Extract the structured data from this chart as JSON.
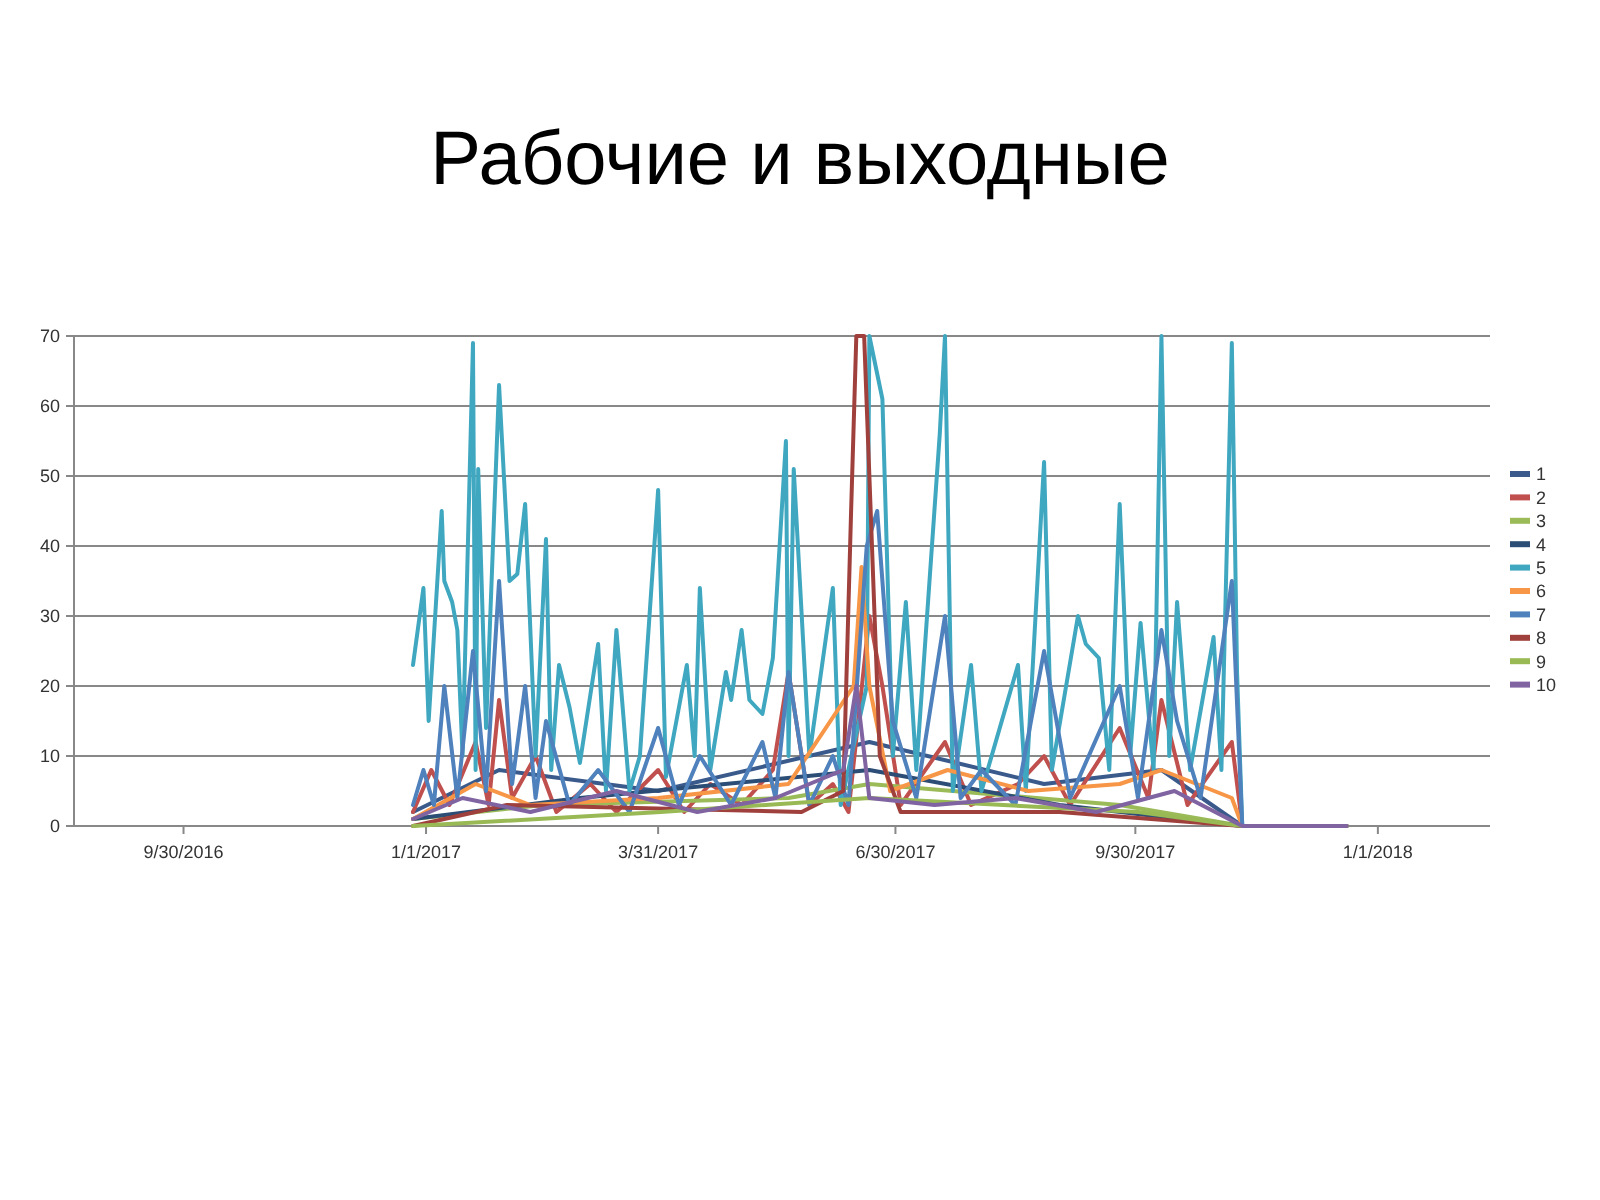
{
  "chart_data": {
    "type": "line",
    "title": "Рабочие и выходные",
    "xlim": [
      "2016-08-19",
      "2018-02-13"
    ],
    "ylim": [
      0,
      70
    ],
    "yticks": [
      0,
      10,
      20,
      30,
      40,
      50,
      60,
      70
    ],
    "xticks": [
      {
        "value": "2016-09-30",
        "label": "9/30/2016"
      },
      {
        "value": "2017-01-01",
        "label": "1/1/2017"
      },
      {
        "value": "2017-03-31",
        "label": "3/31/2017"
      },
      {
        "value": "2017-06-30",
        "label": "6/30/2017"
      },
      {
        "value": "2017-09-30",
        "label": "9/30/2017"
      },
      {
        "value": "2018-01-01",
        "label": "1/1/2018"
      }
    ],
    "grid": "y",
    "legend": "right",
    "line_style": "solid",
    "series": [
      {
        "name": "1",
        "color": "#3a5a8c",
        "x": [
          "2016-12-27",
          "2017-01-29",
          "2017-03-31",
          "2017-06-20",
          "2017-08-26",
          "2017-10-10",
          "2017-11-10",
          "2017-12-20"
        ],
        "values": [
          2,
          8,
          5,
          12,
          6,
          8,
          0,
          0
        ]
      },
      {
        "name": "2",
        "color": "#c0504d",
        "x": [
          "2016-12-27",
          "2017-01-03",
          "2017-01-10",
          "2017-01-20",
          "2017-01-25",
          "2017-01-29",
          "2017-02-03",
          "2017-02-12",
          "2017-02-20",
          "2017-03-05",
          "2017-03-15",
          "2017-03-31",
          "2017-04-10",
          "2017-04-20",
          "2017-05-02",
          "2017-05-14",
          "2017-05-20",
          "2017-05-28",
          "2017-06-06",
          "2017-06-12",
          "2017-06-20",
          "2017-06-25",
          "2017-07-02",
          "2017-07-19",
          "2017-07-29",
          "2017-08-16",
          "2017-08-26",
          "2017-09-05",
          "2017-09-24",
          "2017-10-05",
          "2017-10-10",
          "2017-10-20",
          "2017-11-06",
          "2017-11-10",
          "2017-12-20"
        ],
        "values": [
          2,
          8,
          3,
          12,
          3,
          18,
          4,
          10,
          2,
          6,
          2,
          8,
          2,
          6,
          3,
          8,
          22,
          3,
          6,
          2,
          30,
          20,
          3,
          12,
          3,
          6,
          10,
          3,
          14,
          4,
          18,
          3,
          12,
          0,
          0
        ]
      },
      {
        "name": "3",
        "color": "#9bbb59",
        "x": [
          "2016-12-27",
          "2017-02-15",
          "2017-05-20",
          "2017-06-20",
          "2017-09-24",
          "2017-11-10",
          "2017-12-20"
        ],
        "values": [
          1,
          3,
          4,
          6,
          3,
          0,
          0
        ]
      },
      {
        "name": "4",
        "color": "#2c4d75",
        "x": [
          "2016-12-27",
          "2017-03-01",
          "2017-06-20",
          "2017-09-01",
          "2017-11-10",
          "2017-12-20"
        ],
        "values": [
          1,
          4,
          8,
          3,
          0,
          0
        ]
      },
      {
        "name": "5",
        "color": "#3fa7c0",
        "x": [
          "2016-12-27",
          "2016-12-31",
          "2017-01-02",
          "2017-01-07",
          "2017-01-08",
          "2017-01-11",
          "2017-01-13",
          "2017-01-15",
          "2017-01-19",
          "2017-01-20",
          "2017-01-21",
          "2017-01-24",
          "2017-01-29",
          "2017-02-02",
          "2017-02-05",
          "2017-02-08",
          "2017-02-12",
          "2017-02-16",
          "2017-02-18",
          "2017-02-21",
          "2017-02-25",
          "2017-03-01",
          "2017-03-08",
          "2017-03-11",
          "2017-03-15",
          "2017-03-20",
          "2017-03-24",
          "2017-03-31",
          "2017-04-03",
          "2017-04-11",
          "2017-04-14",
          "2017-04-16",
          "2017-04-20",
          "2017-04-26",
          "2017-04-28",
          "2017-05-02",
          "2017-05-05",
          "2017-05-10",
          "2017-05-14",
          "2017-05-19",
          "2017-05-20",
          "2017-05-22",
          "2017-05-28",
          "2017-06-06",
          "2017-06-09",
          "2017-06-19",
          "2017-06-20",
          "2017-06-25",
          "2017-06-29",
          "2017-07-04",
          "2017-07-08",
          "2017-07-17",
          "2017-07-19",
          "2017-07-22",
          "2017-07-29",
          "2017-08-02",
          "2017-08-16",
          "2017-08-19",
          "2017-08-26",
          "2017-08-29",
          "2017-09-08",
          "2017-09-11",
          "2017-09-16",
          "2017-09-20",
          "2017-09-24",
          "2017-09-28",
          "2017-10-02",
          "2017-10-07",
          "2017-10-10",
          "2017-10-13",
          "2017-10-16",
          "2017-10-21",
          "2017-10-30",
          "2017-11-02",
          "2017-11-06",
          "2017-11-08",
          "2017-11-10",
          "2017-12-20"
        ],
        "values": [
          23,
          34,
          15,
          45,
          35,
          32,
          28,
          10,
          69,
          8,
          51,
          14,
          63,
          35,
          36,
          46,
          10,
          41,
          8,
          23,
          17,
          9,
          26,
          5,
          28,
          5,
          10,
          48,
          7,
          23,
          10,
          34,
          8,
          22,
          18,
          28,
          18,
          16,
          24,
          55,
          10,
          51,
          10,
          34,
          3,
          20,
          70,
          61,
          10,
          32,
          8,
          56,
          70,
          5,
          23,
          5,
          23,
          5,
          52,
          8,
          30,
          26,
          24,
          8,
          46,
          10,
          29,
          8,
          70,
          10,
          32,
          8,
          27,
          8,
          69,
          22,
          0,
          0
        ]
      },
      {
        "name": "6",
        "color": "#f79646",
        "x": [
          "2016-12-27",
          "2017-01-20",
          "2017-02-10",
          "2017-03-31",
          "2017-05-20",
          "2017-06-14",
          "2017-06-17",
          "2017-06-20",
          "2017-06-28",
          "2017-07-20",
          "2017-08-20",
          "2017-09-24",
          "2017-10-10",
          "2017-11-06",
          "2017-11-10",
          "2017-12-20"
        ],
        "values": [
          1,
          6,
          3,
          4,
          6,
          20,
          37,
          20,
          5,
          8,
          5,
          6,
          8,
          4,
          0,
          0
        ]
      },
      {
        "name": "7",
        "color": "#4f81bd",
        "x": [
          "2016-12-27",
          "2016-12-31",
          "2017-01-04",
          "2017-01-08",
          "2017-01-13",
          "2017-01-19",
          "2017-01-24",
          "2017-01-29",
          "2017-02-03",
          "2017-02-08",
          "2017-02-12",
          "2017-02-16",
          "2017-02-25",
          "2017-03-08",
          "2017-03-20",
          "2017-03-31",
          "2017-04-08",
          "2017-04-16",
          "2017-04-28",
          "2017-05-10",
          "2017-05-15",
          "2017-05-20",
          "2017-05-28",
          "2017-06-06",
          "2017-06-12",
          "2017-06-19",
          "2017-06-23",
          "2017-06-29",
          "2017-07-08",
          "2017-07-19",
          "2017-07-25",
          "2017-08-02",
          "2017-08-15",
          "2017-08-26",
          "2017-09-05",
          "2017-09-24",
          "2017-10-01",
          "2017-10-10",
          "2017-10-16",
          "2017-10-25",
          "2017-11-06",
          "2017-11-10",
          "2017-12-20"
        ],
        "values": [
          3,
          8,
          3,
          20,
          4,
          25,
          5,
          35,
          6,
          20,
          4,
          15,
          3,
          8,
          2,
          14,
          3,
          10,
          3,
          12,
          4,
          22,
          3,
          10,
          3,
          40,
          45,
          15,
          4,
          30,
          4,
          8,
          3,
          25,
          4,
          20,
          4,
          28,
          15,
          4,
          35,
          0,
          0
        ]
      },
      {
        "name": "8",
        "color": "#a0403c",
        "x": [
          "2016-12-27",
          "2017-02-01",
          "2017-05-25",
          "2017-06-10",
          "2017-06-13",
          "2017-06-15",
          "2017-06-18",
          "2017-06-21",
          "2017-06-24",
          "2017-07-02",
          "2017-09-01",
          "2017-11-10",
          "2017-12-20"
        ],
        "values": [
          0,
          3,
          2,
          5,
          45,
          70,
          70,
          40,
          10,
          2,
          2,
          0,
          0
        ]
      },
      {
        "name": "9",
        "color": "#98b954",
        "x": [
          "2016-12-27",
          "2017-04-01",
          "2017-06-20",
          "2017-10-01",
          "2017-11-10",
          "2017-12-20"
        ],
        "values": [
          0,
          2,
          4,
          2,
          0,
          0
        ]
      },
      {
        "name": "10",
        "color": "#8064a2",
        "x": [
          "2016-12-27",
          "2017-01-15",
          "2017-02-10",
          "2017-03-15",
          "2017-04-15",
          "2017-05-15",
          "2017-06-10",
          "2017-06-15",
          "2017-06-20",
          "2017-07-15",
          "2017-08-15",
          "2017-09-15",
          "2017-10-15",
          "2017-11-10",
          "2017-12-20"
        ],
        "values": [
          1,
          4,
          2,
          5,
          2,
          4,
          8,
          20,
          4,
          3,
          4,
          2,
          5,
          0,
          0
        ]
      }
    ]
  }
}
